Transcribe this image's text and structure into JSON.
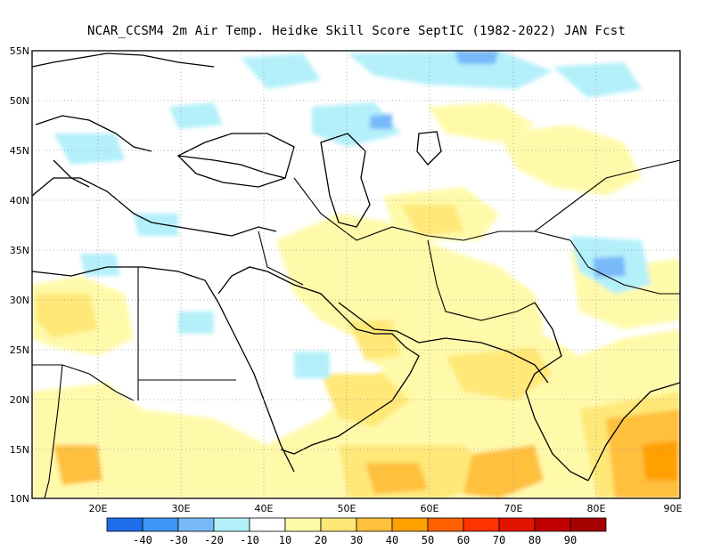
{
  "title": "NCAR_CCSM4  2m Air Temp. Heidke Skill Score SeptIC (1982-2022) JAN Fcst",
  "axes": {
    "lon_range": [
      12,
      90
    ],
    "lat_range": [
      10,
      55
    ],
    "lon_ticks": [
      "20E",
      "30E",
      "40E",
      "50E",
      "60E",
      "70E",
      "80E",
      "90E"
    ],
    "lat_ticks": [
      "55N",
      "50N",
      "45N",
      "40N",
      "35N",
      "30N",
      "25N",
      "20N",
      "15N",
      "10N"
    ],
    "grid": "dotted"
  },
  "legend": {
    "colors": [
      "#1e6eeb",
      "#3c96f5",
      "#78b9fa",
      "#b4f0fa",
      "#ffffff",
      "#fffaaa",
      "#ffe878",
      "#ffc03c",
      "#ffa000",
      "#ff6000",
      "#ff3200",
      "#e11400",
      "#c00000",
      "#a50000"
    ],
    "labels": [
      "-40",
      "-30",
      "-20",
      "-10",
      "10",
      "20",
      "30",
      "40",
      "50",
      "60",
      "70",
      "80",
      "90"
    ]
  },
  "colors": {
    "light_yellow": "#fffaaa",
    "yellow": "#ffe878",
    "orange_light": "#ffc03c",
    "orange": "#ffa000",
    "light_blue": "#b4f0fa",
    "blue": "#78b9fa"
  }
}
